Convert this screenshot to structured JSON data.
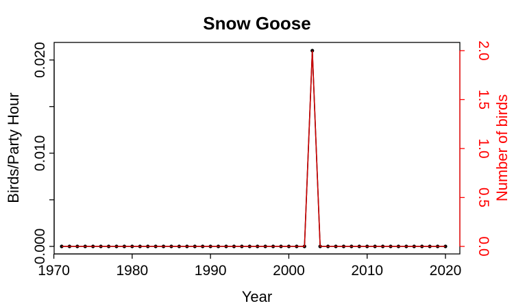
{
  "chart_data": {
    "type": "line",
    "title": "Snow Goose",
    "xlabel": "Year",
    "ylabel": "Birds/Party Hour",
    "ylabel_right": "Number of birds",
    "xlim": [
      1970,
      2020
    ],
    "ylim": [
      0,
      0.021
    ],
    "ylim_right": [
      0,
      2.0
    ],
    "x_ticks": [
      1970,
      1980,
      1990,
      2000,
      2010,
      2020
    ],
    "y_ticks": [
      "0.000",
      "0.010",
      "0.020"
    ],
    "y_ticks_unlabeled": [
      0.005,
      0.015
    ],
    "y_ticks_right": [
      "0.0",
      "0.5",
      "1.0",
      "1.5",
      "2.0"
    ],
    "grid": false,
    "colors": {
      "left_series": "#000000",
      "right_series": "#cc0000",
      "right_axis": "#ff0000"
    },
    "x": [
      1971,
      1972,
      1973,
      1974,
      1975,
      1976,
      1977,
      1978,
      1979,
      1980,
      1981,
      1982,
      1983,
      1984,
      1985,
      1986,
      1987,
      1988,
      1989,
      1990,
      1991,
      1992,
      1993,
      1994,
      1995,
      1996,
      1997,
      1998,
      1999,
      2000,
      2001,
      2002,
      2003,
      2004,
      2005,
      2006,
      2007,
      2008,
      2009,
      2010,
      2011,
      2012,
      2013,
      2014,
      2015,
      2016,
      2017,
      2018,
      2019,
      2020
    ],
    "series": [
      {
        "axis": "left",
        "values": [
          0,
          0,
          0,
          0,
          0,
          0,
          0,
          0,
          0,
          0,
          0,
          0,
          0,
          0,
          0,
          0,
          0,
          0,
          0,
          0,
          0,
          0,
          0,
          0,
          0,
          0,
          0,
          0,
          0,
          0,
          0,
          0,
          0.021,
          0,
          0,
          0,
          0,
          0,
          0,
          0,
          0,
          0,
          0,
          0,
          0,
          0,
          0,
          0,
          0,
          0
        ]
      },
      {
        "axis": "right",
        "values": [
          0,
          0,
          0,
          0,
          0,
          0,
          0,
          0,
          0,
          0,
          0,
          0,
          0,
          0,
          0,
          0,
          0,
          0,
          0,
          0,
          0,
          0,
          0,
          0,
          0,
          0,
          0,
          0,
          0,
          0,
          0,
          0,
          2,
          0,
          0,
          0,
          0,
          0,
          0,
          0,
          0,
          0,
          0,
          0,
          0,
          0,
          0,
          0,
          0,
          0
        ]
      }
    ]
  }
}
